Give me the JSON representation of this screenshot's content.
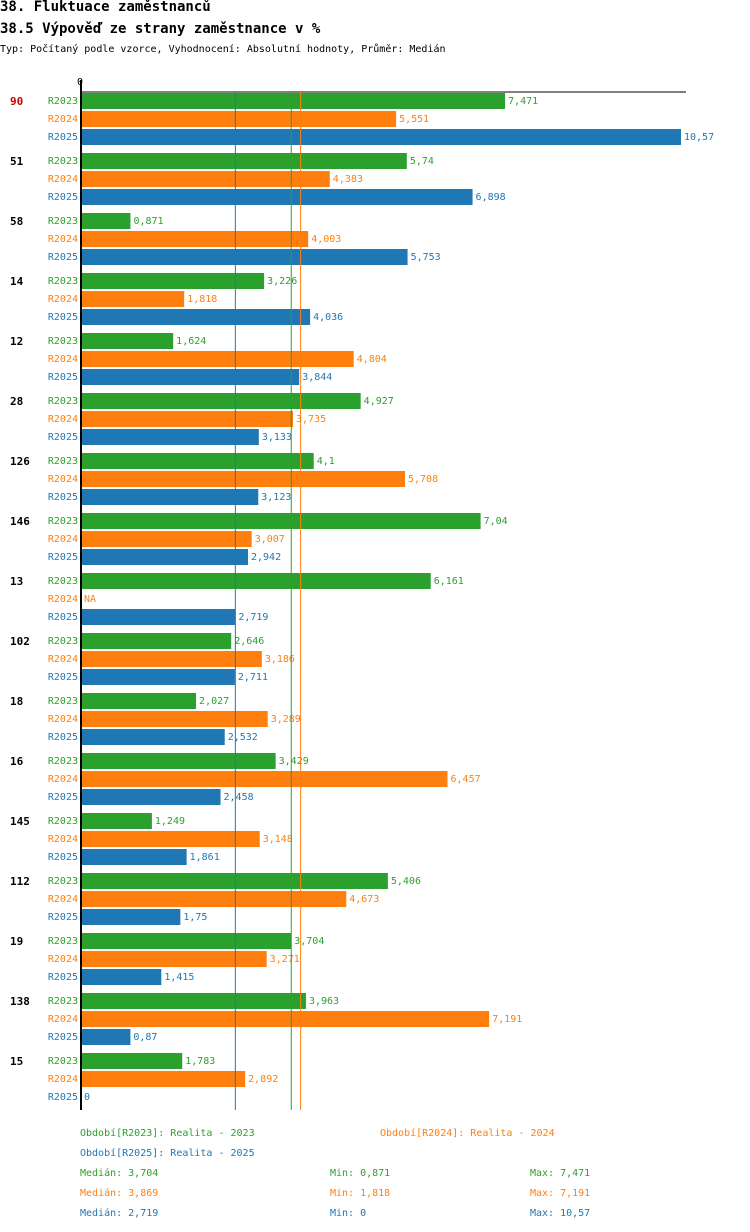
{
  "header": {
    "title": "38. Fluktuace zaměstnanců",
    "subtitle": "38.5 Výpověď ze strany zaměstnance v %",
    "info": "Typ: Počítaný podle vzorce, Vyhodnocení: Absolutní hodnoty, Průměr: Medián"
  },
  "chart_data": {
    "type": "bar",
    "orientation": "horizontal",
    "axis_zero_label": "0",
    "xlim": [
      0,
      10.57
    ],
    "colors": {
      "R2023": "#2ca02c",
      "R2024": "#ff7f0e",
      "R2025": "#1f77b4",
      "highlight": "#cc0000"
    },
    "series_names": [
      "R2023",
      "R2024",
      "R2025"
    ],
    "groups": [
      {
        "label": "90",
        "highlight": true,
        "values": [
          7.471,
          5.551,
          10.57
        ],
        "labels": [
          "7,471",
          "5,551",
          "10,57"
        ]
      },
      {
        "label": "51",
        "values": [
          5.74,
          4.383,
          6.898
        ],
        "labels": [
          "5,74",
          "4,383",
          "6,898"
        ]
      },
      {
        "label": "58",
        "values": [
          0.871,
          4.003,
          5.753
        ],
        "labels": [
          "0,871",
          "4,003",
          "5,753"
        ]
      },
      {
        "label": "14",
        "values": [
          3.226,
          1.818,
          4.036
        ],
        "labels": [
          "3,226",
          "1,818",
          "4,036"
        ]
      },
      {
        "label": "12",
        "values": [
          1.624,
          4.804,
          3.844
        ],
        "labels": [
          "1,624",
          "4,804",
          "3,844"
        ]
      },
      {
        "label": "28",
        "values": [
          4.927,
          3.735,
          3.133
        ],
        "labels": [
          "4,927",
          "3,735",
          "3,133"
        ]
      },
      {
        "label": "126",
        "values": [
          4.1,
          5.708,
          3.123
        ],
        "labels": [
          "4,1",
          "5,708",
          "3,123"
        ]
      },
      {
        "label": "146",
        "values": [
          7.04,
          3.007,
          2.942
        ],
        "labels": [
          "7,04",
          "3,007",
          "2,942"
        ]
      },
      {
        "label": "13",
        "values": [
          6.161,
          null,
          2.719
        ],
        "labels": [
          "6,161",
          "NA",
          "2,719"
        ]
      },
      {
        "label": "102",
        "values": [
          2.646,
          3.186,
          2.711
        ],
        "labels": [
          "2,646",
          "3,186",
          "2,711"
        ]
      },
      {
        "label": "18",
        "values": [
          2.027,
          3.289,
          2.532
        ],
        "labels": [
          "2,027",
          "3,289",
          "2,532"
        ]
      },
      {
        "label": "16",
        "values": [
          3.429,
          6.457,
          2.458
        ],
        "labels": [
          "3,429",
          "6,457",
          "2,458"
        ]
      },
      {
        "label": "145",
        "values": [
          1.249,
          3.148,
          1.861
        ],
        "labels": [
          "1,249",
          "3,148",
          "1,861"
        ]
      },
      {
        "label": "112",
        "values": [
          5.406,
          4.673,
          1.75
        ],
        "labels": [
          "5,406",
          "4,673",
          "1,75"
        ]
      },
      {
        "label": "19",
        "values": [
          3.704,
          3.271,
          1.415
        ],
        "labels": [
          "3,704",
          "3,271",
          "1,415"
        ]
      },
      {
        "label": "138",
        "values": [
          3.963,
          7.191,
          0.87
        ],
        "labels": [
          "3,963",
          "7,191",
          "0,87"
        ]
      },
      {
        "label": "15",
        "values": [
          1.783,
          2.892,
          0
        ],
        "labels": [
          "1,783",
          "2,892",
          "0"
        ]
      }
    ],
    "medians": [
      3.704,
      3.869,
      2.719
    ]
  },
  "legend": {
    "r2023": "Období[R2023]: Realita - 2023",
    "r2024": "Období[R2024]: Realita - 2024",
    "r2025": "Období[R2025]: Realita - 2025"
  },
  "stats": {
    "r2023": {
      "median": "Medián: 3,704",
      "min": "Min: 0,871",
      "max": "Max: 7,471"
    },
    "r2024": {
      "median": "Medián: 3,869",
      "min": "Min: 1,818",
      "max": "Max: 7,191"
    },
    "r2025": {
      "median": "Medián: 2,719",
      "min": "Min: 0",
      "max": "Max: 10,57"
    }
  }
}
